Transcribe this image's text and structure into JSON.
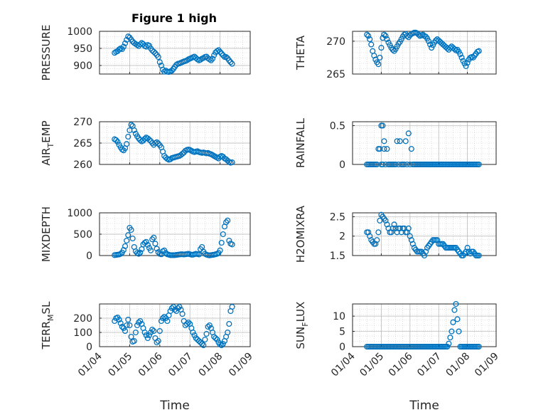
{
  "figure_title": "Figure 1 high",
  "colors": {
    "marker": "#0072bd",
    "axis": "#262626",
    "grid": "#c8c8c8",
    "background": "#ffffff"
  },
  "x_tick_labels": [
    "01/04",
    "01/05",
    "01/06",
    "01/07",
    "01/08",
    "01/09"
  ],
  "x_label": "Time",
  "chart_data": [
    {
      "type": "scatter",
      "ylabel": "PRESSURE",
      "ylim": [
        875,
        1000
      ],
      "yticks": [
        900,
        950,
        1000
      ],
      "grid": true,
      "x": [
        0.5,
        0.55,
        0.6,
        0.65,
        0.7,
        0.75,
        0.8,
        0.85,
        0.9,
        0.95,
        1.0,
        1.05,
        1.1,
        1.15,
        1.2,
        1.25,
        1.3,
        1.35,
        1.4,
        1.45,
        1.5,
        1.55,
        1.6,
        1.65,
        1.7,
        1.75,
        1.8,
        1.85,
        1.9,
        1.95,
        2.0,
        2.05,
        2.1,
        2.15,
        2.2,
        2.25,
        2.3,
        2.35,
        2.4,
        2.45,
        2.5,
        2.55,
        2.6,
        2.65,
        2.7,
        2.75,
        2.8,
        2.85,
        2.9,
        2.95,
        3.0,
        3.05,
        3.1,
        3.15,
        3.2,
        3.25,
        3.3,
        3.35,
        3.4,
        3.45,
        3.5,
        3.55,
        3.6,
        3.65,
        3.7,
        3.75,
        3.8,
        3.85,
        3.9,
        3.95,
        4.0,
        4.05,
        4.1,
        4.15,
        4.2,
        4.25,
        4.3,
        4.35,
        4.4
      ],
      "y": [
        937,
        940,
        942,
        947,
        950,
        948,
        955,
        965,
        975,
        985,
        982,
        976,
        970,
        966,
        963,
        960,
        957,
        962,
        966,
        963,
        957,
        955,
        960,
        958,
        950,
        944,
        940,
        936,
        931,
        925,
        910,
        900,
        888,
        882,
        885,
        882,
        881,
        883,
        885,
        890,
        896,
        902,
        905,
        906,
        908,
        910,
        912,
        913,
        915,
        918,
        920,
        922,
        924,
        926,
        922,
        918,
        915,
        917,
        920,
        922,
        925,
        926,
        921,
        918,
        915,
        920,
        930,
        938,
        942,
        945,
        940,
        935,
        930,
        925,
        925,
        921,
        915,
        910,
        905
      ]
    },
    {
      "type": "scatter",
      "ylabel": "THETA",
      "ylim": [
        265,
        271.5
      ],
      "yticks": [
        265,
        270
      ],
      "grid": true,
      "x": [
        0.5,
        0.55,
        0.6,
        0.65,
        0.7,
        0.75,
        0.8,
        0.85,
        0.9,
        0.95,
        1.0,
        1.05,
        1.1,
        1.15,
        1.2,
        1.25,
        1.3,
        1.35,
        1.4,
        1.45,
        1.5,
        1.55,
        1.6,
        1.65,
        1.7,
        1.75,
        1.8,
        1.85,
        1.9,
        1.95,
        2.0,
        2.05,
        2.1,
        2.15,
        2.2,
        2.25,
        2.3,
        2.35,
        2.4,
        2.45,
        2.5,
        2.55,
        2.6,
        2.65,
        2.7,
        2.75,
        2.8,
        2.85,
        2.9,
        2.95,
        3.0,
        3.05,
        3.1,
        3.15,
        3.2,
        3.25,
        3.3,
        3.35,
        3.4,
        3.45,
        3.5,
        3.55,
        3.6,
        3.65,
        3.7,
        3.75,
        3.8,
        3.85,
        3.9,
        3.95,
        4.0,
        4.05,
        4.1,
        4.15,
        4.2,
        4.25,
        4.3,
        4.35,
        4.4
      ],
      "y": [
        271,
        270.8,
        270.3,
        269.5,
        268.5,
        267.8,
        267.2,
        266.8,
        266.5,
        267.5,
        269,
        270.5,
        271,
        270.8,
        270.3,
        269.8,
        269.4,
        269.0,
        268.7,
        268.5,
        268.8,
        269.2,
        269.6,
        269.9,
        270.3,
        270.7,
        271.0,
        271.1,
        270.8,
        270.6,
        270.9,
        271.1,
        271.2,
        271.3,
        271.3,
        271.2,
        271.0,
        270.8,
        270.9,
        271.0,
        270.8,
        270.7,
        270.4,
        270.0,
        269.5,
        269.0,
        269.4,
        269.8,
        270.1,
        270.3,
        270.1,
        269.9,
        269.7,
        269.5,
        269.3,
        269.1,
        268.9,
        268.7,
        269.0,
        269.2,
        269.0,
        268.8,
        268.6,
        268.7,
        268.4,
        268.0,
        267.5,
        267.0,
        266.6,
        266.2,
        266.7,
        267.2,
        267.5,
        267.6,
        267.5,
        267.8,
        268.1,
        268.4,
        268.5
      ]
    },
    {
      "type": "scatter",
      "ylabel": "AIR_TEMP",
      "ylim": [
        260,
        270
      ],
      "yticks": [
        260,
        265,
        270
      ],
      "grid": true,
      "x": [
        0.5,
        0.55,
        0.6,
        0.65,
        0.7,
        0.75,
        0.8,
        0.85,
        0.9,
        0.95,
        1.0,
        1.05,
        1.1,
        1.15,
        1.2,
        1.25,
        1.3,
        1.35,
        1.4,
        1.45,
        1.5,
        1.55,
        1.6,
        1.65,
        1.7,
        1.75,
        1.8,
        1.85,
        1.9,
        1.95,
        2.0,
        2.05,
        2.1,
        2.15,
        2.2,
        2.25,
        2.3,
        2.35,
        2.4,
        2.45,
        2.5,
        2.55,
        2.6,
        2.65,
        2.7,
        2.75,
        2.8,
        2.85,
        2.9,
        2.95,
        3.0,
        3.05,
        3.1,
        3.15,
        3.2,
        3.25,
        3.3,
        3.35,
        3.4,
        3.45,
        3.5,
        3.55,
        3.6,
        3.65,
        3.7,
        3.75,
        3.8,
        3.85,
        3.9,
        3.95,
        4.0,
        4.05,
        4.1,
        4.15,
        4.2,
        4.25,
        4.3,
        4.35,
        4.4
      ],
      "y": [
        265.9,
        265.7,
        265.3,
        264.6,
        264.0,
        263.5,
        263.3,
        263.8,
        264.8,
        266.5,
        268.0,
        269.3,
        269.0,
        268.0,
        267.2,
        266.6,
        266.1,
        265.7,
        265.4,
        265.6,
        266.0,
        266.3,
        266.1,
        265.8,
        265.5,
        265.0,
        264.6,
        265.0,
        265.2,
        264.9,
        264.5,
        264.0,
        263.0,
        262.0,
        261.6,
        261.3,
        261.1,
        261.2,
        261.5,
        261.6,
        261.7,
        261.8,
        261.9,
        262.0,
        262.2,
        262.5,
        262.8,
        263.2,
        263.4,
        263.5,
        263.4,
        263.2,
        263.0,
        262.9,
        263.0,
        263.1,
        262.9,
        262.8,
        262.7,
        262.8,
        262.7,
        262.6,
        262.7,
        262.5,
        262.4,
        262.2,
        262.0,
        261.8,
        261.6,
        261.4,
        261.8,
        262.0,
        261.8,
        261.4,
        261.2,
        260.9,
        260.6,
        260.4,
        260.5
      ]
    },
    {
      "type": "scatter",
      "ylabel": "RAINFALL",
      "ylim": [
        0,
        0.55
      ],
      "yticks": [
        0,
        0.5
      ],
      "grid": true,
      "x": [
        0.5,
        0.55,
        0.6,
        0.65,
        0.7,
        0.75,
        0.8,
        0.85,
        0.9,
        0.95,
        1.0,
        1.0,
        1.05,
        1.05,
        1.1,
        1.1,
        1.15,
        1.2,
        1.25,
        1.3,
        1.35,
        1.4,
        1.45,
        1.5,
        1.55,
        1.6,
        1.65,
        1.7,
        1.75,
        1.8,
        1.85,
        1.9,
        1.95,
        2.0,
        2.05,
        2.1,
        2.15,
        2.2,
        2.25,
        2.3,
        2.35,
        2.4,
        2.45,
        2.5,
        2.55,
        2.6,
        2.65,
        2.7,
        2.75,
        2.8,
        2.85,
        2.9,
        2.95,
        3.0,
        3.05,
        3.1,
        3.15,
        3.2,
        3.25,
        3.3,
        3.35,
        3.4,
        3.45,
        3.5,
        3.55,
        3.6,
        3.65,
        3.7,
        3.75,
        3.8,
        3.85,
        3.9,
        3.95,
        4.0,
        4.05,
        4.1,
        4.15,
        4.2,
        4.25,
        4.3,
        4.35,
        4.4
      ],
      "y": [
        0,
        0,
        0,
        0,
        0,
        0,
        0,
        0,
        0.2,
        0.2,
        0.5,
        0,
        0.5,
        0,
        0.3,
        0.2,
        0,
        0.2,
        0,
        0,
        0,
        0,
        0,
        0,
        0.3,
        0,
        0.3,
        0,
        0,
        0,
        0.3,
        0,
        0.4,
        0,
        0.2,
        0,
        0,
        0,
        0,
        0,
        0,
        0,
        0,
        0,
        0,
        0,
        0,
        0,
        0,
        0,
        0,
        0,
        0,
        0,
        0,
        0,
        0,
        0,
        0,
        0,
        0,
        0,
        0,
        0,
        0,
        0,
        0,
        0,
        0,
        0,
        0,
        0,
        0,
        0,
        0,
        0,
        0,
        0,
        0,
        0,
        0,
        0
      ]
    },
    {
      "type": "scatter",
      "ylabel": "MIXDEPTH",
      "ylim": [
        0,
        1000
      ],
      "yticks": [
        0,
        500,
        1000
      ],
      "grid": true,
      "x": [
        0.5,
        0.55,
        0.6,
        0.65,
        0.7,
        0.75,
        0.8,
        0.85,
        0.9,
        0.95,
        1.0,
        1.05,
        1.1,
        1.15,
        1.2,
        1.25,
        1.3,
        1.35,
        1.4,
        1.45,
        1.5,
        1.55,
        1.6,
        1.65,
        1.7,
        1.75,
        1.8,
        1.85,
        1.9,
        1.95,
        2.0,
        2.05,
        2.1,
        2.15,
        2.2,
        2.25,
        2.3,
        2.35,
        2.4,
        2.45,
        2.5,
        2.55,
        2.6,
        2.65,
        2.7,
        2.75,
        2.8,
        2.85,
        2.9,
        2.95,
        3.0,
        3.05,
        3.1,
        3.15,
        3.2,
        3.25,
        3.3,
        3.35,
        3.4,
        3.45,
        3.5,
        3.55,
        3.6,
        3.65,
        3.7,
        3.75,
        3.8,
        3.85,
        3.9,
        3.95,
        4.0,
        4.05,
        4.1,
        4.15,
        4.2,
        4.25,
        4.3,
        4.35,
        4.4
      ],
      "y": [
        10,
        15,
        20,
        25,
        40,
        70,
        130,
        220,
        350,
        480,
        650,
        600,
        400,
        200,
        100,
        60,
        40,
        70,
        150,
        260,
        300,
        320,
        250,
        180,
        120,
        380,
        420,
        280,
        160,
        80,
        40,
        30,
        100,
        120,
        60,
        30,
        20,
        10,
        10,
        10,
        10,
        15,
        20,
        25,
        30,
        30,
        25,
        30,
        35,
        40,
        30,
        20,
        20,
        30,
        40,
        35,
        25,
        150,
        200,
        90,
        40,
        20,
        10,
        5,
        10,
        15,
        20,
        30,
        40,
        60,
        120,
        300,
        500,
        680,
        780,
        820,
        350,
        280,
        260
      ]
    },
    {
      "type": "scatter",
      "ylabel": "H2OMIXRA",
      "ylim": [
        1.5,
        2.6
      ],
      "yticks": [
        1.5,
        2,
        2.5
      ],
      "grid": true,
      "x": [
        0.5,
        0.55,
        0.6,
        0.65,
        0.7,
        0.75,
        0.8,
        0.85,
        0.9,
        0.95,
        1.0,
        1.05,
        1.1,
        1.15,
        1.2,
        1.25,
        1.3,
        1.35,
        1.4,
        1.45,
        1.5,
        1.55,
        1.6,
        1.65,
        1.7,
        1.75,
        1.8,
        1.85,
        1.9,
        1.95,
        2.0,
        2.05,
        2.1,
        2.15,
        2.2,
        2.25,
        2.3,
        2.35,
        2.4,
        2.45,
        2.5,
        2.55,
        2.6,
        2.65,
        2.7,
        2.75,
        2.8,
        2.85,
        2.9,
        2.95,
        3.0,
        3.05,
        3.1,
        3.15,
        3.2,
        3.25,
        3.3,
        3.35,
        3.4,
        3.45,
        3.5,
        3.55,
        3.6,
        3.65,
        3.7,
        3.75,
        3.8,
        3.85,
        3.9,
        3.95,
        4.0,
        4.05,
        4.1,
        4.15,
        4.2,
        4.25,
        4.3,
        4.35,
        4.4
      ],
      "y": [
        2.1,
        2.1,
        2.0,
        1.9,
        1.85,
        1.8,
        1.8,
        1.9,
        2.1,
        2.4,
        2.55,
        2.5,
        2.45,
        2.4,
        2.3,
        2.2,
        2.1,
        2.1,
        2.2,
        2.3,
        2.2,
        2.1,
        2.2,
        2.2,
        2.1,
        2.2,
        2.2,
        2.1,
        2.1,
        2.2,
        2.0,
        1.9,
        1.8,
        1.7,
        1.65,
        1.6,
        1.6,
        1.6,
        1.6,
        1.55,
        1.5,
        1.6,
        1.7,
        1.75,
        1.8,
        1.85,
        1.9,
        1.9,
        1.9,
        1.9,
        1.8,
        1.8,
        1.8,
        1.8,
        1.75,
        1.7,
        1.7,
        1.7,
        1.7,
        1.7,
        1.7,
        1.7,
        1.7,
        1.65,
        1.6,
        1.55,
        1.5,
        1.5,
        1.55,
        1.6,
        1.7,
        1.6,
        1.55,
        1.6,
        1.6,
        1.55,
        1.5,
        1.5,
        1.5
      ]
    },
    {
      "type": "scatter",
      "ylabel": "TERR_MSL",
      "ylim": [
        0,
        300
      ],
      "yticks": [
        0,
        100,
        200
      ],
      "grid": true,
      "x": [
        0.5,
        0.55,
        0.6,
        0.65,
        0.7,
        0.75,
        0.8,
        0.85,
        0.9,
        0.95,
        1.0,
        1.05,
        1.1,
        1.15,
        1.2,
        1.25,
        1.3,
        1.35,
        1.4,
        1.45,
        1.5,
        1.55,
        1.6,
        1.65,
        1.7,
        1.75,
        1.8,
        1.85,
        1.9,
        1.95,
        2.0,
        2.05,
        2.1,
        2.15,
        2.2,
        2.25,
        2.3,
        2.35,
        2.4,
        2.45,
        2.5,
        2.55,
        2.6,
        2.65,
        2.7,
        2.75,
        2.8,
        2.85,
        2.9,
        2.95,
        3.0,
        3.05,
        3.1,
        3.15,
        3.2,
        3.25,
        3.3,
        3.35,
        3.4,
        3.45,
        3.5,
        3.55,
        3.6,
        3.65,
        3.7,
        3.75,
        3.8,
        3.85,
        3.9,
        3.95,
        4.0,
        4.05,
        4.1,
        4.15,
        4.2,
        4.25,
        4.3,
        4.35,
        4.4
      ],
      "y": [
        180,
        200,
        205,
        190,
        165,
        140,
        130,
        110,
        150,
        190,
        150,
        70,
        35,
        40,
        100,
        150,
        170,
        180,
        160,
        130,
        100,
        80,
        60,
        80,
        100,
        120,
        110,
        60,
        30,
        40,
        110,
        180,
        200,
        210,
        200,
        180,
        220,
        250,
        270,
        280,
        260,
        250,
        270,
        280,
        260,
        230,
        180,
        150,
        160,
        170,
        160,
        130,
        100,
        80,
        60,
        50,
        40,
        30,
        20,
        10,
        50,
        90,
        140,
        150,
        130,
        100,
        70,
        60,
        50,
        30,
        15,
        10,
        20,
        40,
        70,
        100,
        160,
        250,
        280
      ]
    },
    {
      "type": "scatter",
      "ylabel": "SUN_FLUX",
      "ylim": [
        0,
        14
      ],
      "yticks": [
        0,
        5,
        10
      ],
      "grid": true,
      "x": [
        0.5,
        0.55,
        0.6,
        0.65,
        0.7,
        0.75,
        0.8,
        0.85,
        0.9,
        0.95,
        1.0,
        1.05,
        1.1,
        1.15,
        1.2,
        1.25,
        1.3,
        1.35,
        1.4,
        1.45,
        1.5,
        1.55,
        1.6,
        1.65,
        1.7,
        1.75,
        1.8,
        1.85,
        1.9,
        1.95,
        2.0,
        2.05,
        2.1,
        2.15,
        2.2,
        2.25,
        2.3,
        2.35,
        2.4,
        2.45,
        2.5,
        2.55,
        2.6,
        2.65,
        2.7,
        2.75,
        2.8,
        2.85,
        2.9,
        2.95,
        3.0,
        3.05,
        3.1,
        3.15,
        3.2,
        3.25,
        3.3,
        3.35,
        3.4,
        3.45,
        3.5,
        3.55,
        3.6,
        3.65,
        3.7,
        3.75,
        3.8,
        3.85,
        3.9,
        3.95,
        4.0,
        4.05,
        4.1,
        4.15,
        4.2,
        4.25,
        4.3,
        4.35,
        4.4
      ],
      "y": [
        0,
        0,
        0,
        0,
        0,
        0,
        0,
        0,
        0,
        0,
        0,
        0,
        0,
        0,
        0,
        0,
        0,
        0,
        0,
        0,
        0,
        0,
        0,
        0,
        0,
        0,
        0,
        0,
        0,
        0,
        0,
        0,
        0,
        0,
        0,
        0,
        0,
        0,
        0,
        0,
        0,
        0,
        0,
        0,
        0,
        0,
        0,
        0,
        0,
        0,
        0,
        0,
        0,
        0,
        0,
        0,
        0,
        1,
        3,
        5,
        8,
        12,
        14,
        9,
        5,
        0,
        0,
        0,
        0,
        0,
        0,
        0,
        0,
        0,
        0,
        0,
        0,
        0,
        0
      ]
    }
  ]
}
